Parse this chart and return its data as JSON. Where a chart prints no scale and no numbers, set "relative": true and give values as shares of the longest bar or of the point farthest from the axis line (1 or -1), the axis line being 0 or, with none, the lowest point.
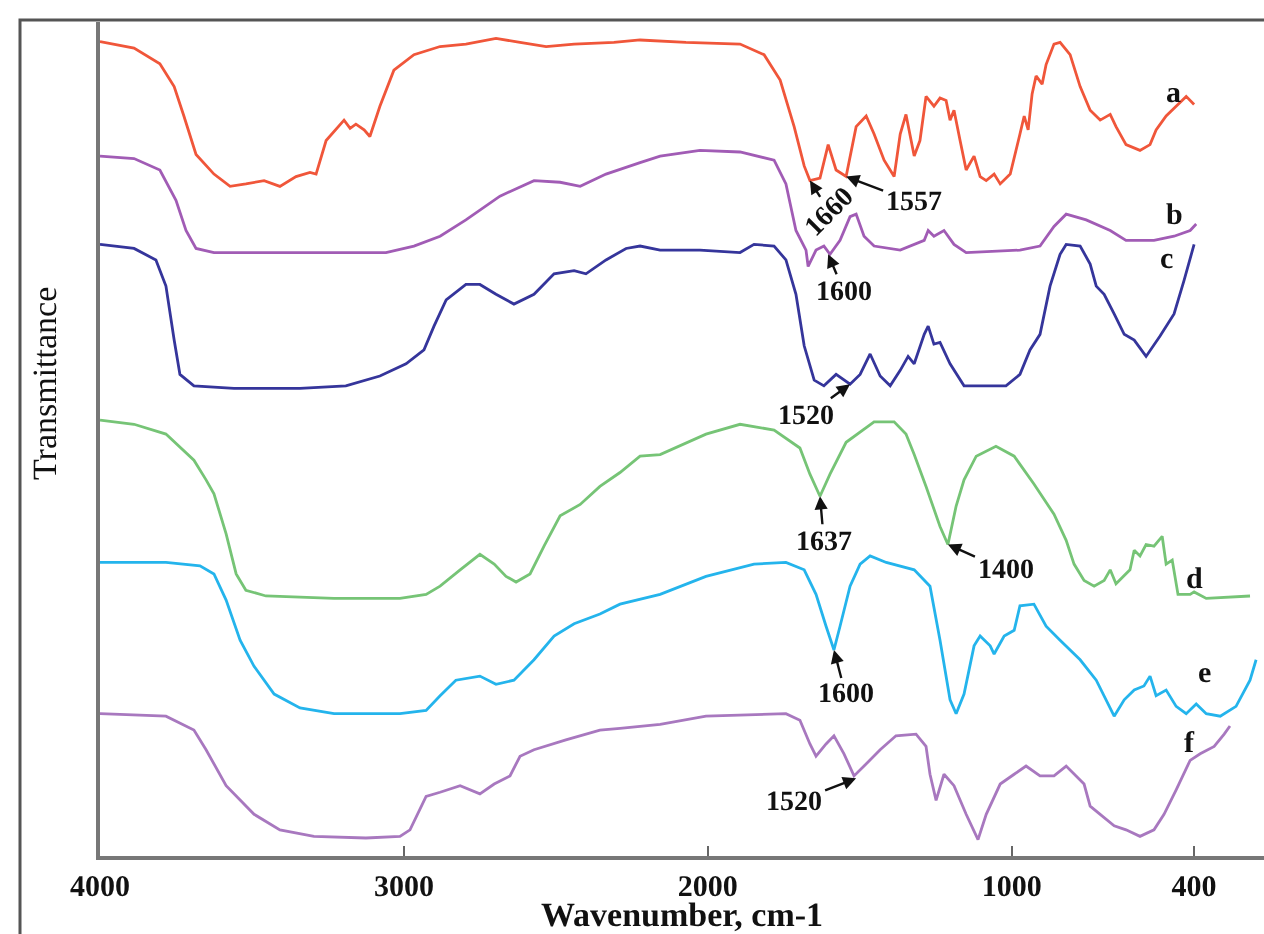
{
  "chart_data": {
    "type": "line",
    "relative": true,
    "xlabel": "Wavenumber, cm-1",
    "ylabel": "Transmittance",
    "xlim": [
      4000,
      170
    ],
    "xticks": [
      4000,
      3000,
      2000,
      1000,
      400
    ],
    "tick_labels": "x",
    "series": [
      {
        "name": "a",
        "color": "#f0563a",
        "x": [
          4000,
          3888,
          3803,
          3756,
          3724,
          3684,
          3625,
          3572,
          3520,
          3460,
          3408,
          3355,
          3309,
          3289,
          3256,
          3197,
          3177,
          3158,
          3131,
          3112,
          3079,
          3033,
          2967,
          2881,
          2796,
          2697,
          2618,
          2532,
          2440,
          2309,
          2223,
          2072,
          1894,
          1815,
          1762,
          1716,
          1683,
          1664,
          1631,
          1604,
          1578,
          1545,
          1512,
          1479,
          1453,
          1420,
          1387,
          1367,
          1348,
          1321,
          1302,
          1282,
          1256,
          1236,
          1216,
          1203,
          1190,
          1170,
          1150,
          1124,
          1104,
          1084,
          1058,
          1038,
          1005,
          973,
          959,
          946,
          933,
          920,
          900,
          887,
          861,
          841,
          808,
          775,
          742,
          709,
          676,
          657,
          624,
          578,
          545,
          525,
          492,
          459,
          426,
          400
        ],
        "values": [
          0.996,
          0.988,
          0.969,
          0.941,
          0.905,
          0.858,
          0.834,
          0.819,
          0.822,
          0.826,
          0.819,
          0.831,
          0.836,
          0.834,
          0.875,
          0.9,
          0.89,
          0.895,
          0.888,
          0.88,
          0.917,
          0.961,
          0.98,
          0.99,
          0.993,
          1.0,
          0.995,
          0.99,
          0.993,
          0.995,
          0.998,
          0.995,
          0.993,
          0.98,
          0.949,
          0.892,
          0.844,
          0.826,
          0.829,
          0.87,
          0.839,
          0.831,
          0.892,
          0.905,
          0.883,
          0.851,
          0.831,
          0.883,
          0.907,
          0.856,
          0.875,
          0.929,
          0.917,
          0.927,
          0.924,
          0.9,
          0.912,
          0.875,
          0.839,
          0.856,
          0.831,
          0.826,
          0.834,
          0.822,
          0.834,
          0.883,
          0.905,
          0.888,
          0.932,
          0.954,
          0.944,
          0.968,
          0.993,
          0.995,
          0.98,
          0.941,
          0.912,
          0.9,
          0.907,
          0.892,
          0.87,
          0.863,
          0.87,
          0.888,
          0.905,
          0.917,
          0.929,
          0.919
        ]
      },
      {
        "name": "b",
        "color": "#a15cb5",
        "x": [
          4000,
          3888,
          3803,
          3750,
          3717,
          3684,
          3625,
          3454,
          3230,
          3059,
          2967,
          2881,
          2796,
          2684,
          2572,
          2486,
          2420,
          2335,
          2223,
          2157,
          2026,
          1894,
          1782,
          1743,
          1710,
          1677,
          1670,
          1644,
          1618,
          1598,
          1565,
          1532,
          1512,
          1486,
          1453,
          1367,
          1288,
          1275,
          1256,
          1223,
          1190,
          1150,
          973,
          907,
          861,
          821,
          755,
          676,
          624,
          532,
          466,
          413,
          393
        ],
        "values": [
          0.856,
          0.853,
          0.839,
          0.802,
          0.765,
          0.743,
          0.738,
          0.738,
          0.738,
          0.738,
          0.746,
          0.758,
          0.778,
          0.807,
          0.826,
          0.824,
          0.819,
          0.834,
          0.848,
          0.856,
          0.863,
          0.861,
          0.851,
          0.822,
          0.765,
          0.741,
          0.721,
          0.741,
          0.746,
          0.736,
          0.753,
          0.782,
          0.785,
          0.758,
          0.746,
          0.741,
          0.753,
          0.765,
          0.758,
          0.765,
          0.748,
          0.738,
          0.741,
          0.746,
          0.77,
          0.785,
          0.778,
          0.765,
          0.753,
          0.753,
          0.758,
          0.765,
          0.773
        ]
      },
      {
        "name": "c",
        "color": "#35359b",
        "x": [
          4000,
          3888,
          3816,
          3783,
          3756,
          3737,
          3691,
          3559,
          3342,
          3191,
          3079,
          2993,
          2934,
          2901,
          2861,
          2796,
          2750,
          2697,
          2638,
          2572,
          2506,
          2440,
          2401,
          2335,
          2269,
          2223,
          2157,
          2026,
          1894,
          1848,
          1782,
          1743,
          1710,
          1683,
          1650,
          1618,
          1578,
          1532,
          1499,
          1466,
          1433,
          1400,
          1367,
          1341,
          1321,
          1288,
          1275,
          1256,
          1236,
          1203,
          1157,
          1019,
          973,
          940,
          907,
          874,
          841,
          821,
          775,
          742,
          722,
          696,
          663,
          630,
          597,
          558,
          512,
          466,
          433,
          400
        ],
        "values": [
          0.748,
          0.743,
          0.729,
          0.697,
          0.631,
          0.589,
          0.575,
          0.572,
          0.572,
          0.575,
          0.587,
          0.602,
          0.619,
          0.648,
          0.68,
          0.699,
          0.699,
          0.687,
          0.675,
          0.687,
          0.712,
          0.716,
          0.712,
          0.729,
          0.743,
          0.746,
          0.741,
          0.741,
          0.738,
          0.748,
          0.746,
          0.729,
          0.687,
          0.624,
          0.582,
          0.575,
          0.589,
          0.577,
          0.589,
          0.614,
          0.587,
          0.575,
          0.594,
          0.611,
          0.602,
          0.638,
          0.648,
          0.626,
          0.628,
          0.602,
          0.575,
          0.575,
          0.589,
          0.619,
          0.638,
          0.697,
          0.736,
          0.748,
          0.746,
          0.724,
          0.697,
          0.687,
          0.663,
          0.638,
          0.631,
          0.611,
          0.636,
          0.663,
          0.704,
          0.748
        ]
      },
      {
        "name": "d",
        "color": "#76c476",
        "x": [
          4000,
          3888,
          3783,
          3691,
          3651,
          3625,
          3585,
          3552,
          3520,
          3454,
          3230,
          3013,
          2927,
          2881,
          2815,
          2750,
          2703,
          2664,
          2631,
          2585,
          2539,
          2486,
          2420,
          2355,
          2289,
          2223,
          2157,
          2006,
          1894,
          1782,
          1697,
          1664,
          1631,
          1598,
          1545,
          1453,
          1387,
          1348,
          1321,
          1282,
          1236,
          1210,
          1183,
          1157,
          1117,
          1052,
          992,
          927,
          861,
          821,
          795,
          762,
          729,
          696,
          676,
          657,
          611,
          597,
          578,
          558,
          532,
          505,
          492,
          472,
          453,
          413,
          400,
          360,
          216
        ],
        "values": [
          0.533,
          0.528,
          0.516,
          0.484,
          0.46,
          0.443,
          0.394,
          0.345,
          0.325,
          0.318,
          0.315,
          0.315,
          0.32,
          0.33,
          0.35,
          0.369,
          0.357,
          0.342,
          0.335,
          0.345,
          0.379,
          0.416,
          0.43,
          0.452,
          0.469,
          0.489,
          0.491,
          0.516,
          0.528,
          0.521,
          0.499,
          0.467,
          0.44,
          0.467,
          0.506,
          0.531,
          0.531,
          0.516,
          0.491,
          0.452,
          0.403,
          0.381,
          0.428,
          0.46,
          0.489,
          0.501,
          0.489,
          0.455,
          0.418,
          0.386,
          0.357,
          0.337,
          0.33,
          0.337,
          0.35,
          0.333,
          0.35,
          0.374,
          0.367,
          0.381,
          0.379,
          0.391,
          0.357,
          0.362,
          0.32,
          0.32,
          0.323,
          0.315,
          0.318
        ]
      },
      {
        "name": "e",
        "color": "#24b4ec",
        "x": [
          4000,
          3783,
          3671,
          3625,
          3585,
          3539,
          3493,
          3427,
          3342,
          3230,
          3013,
          2927,
          2881,
          2829,
          2750,
          2697,
          2638,
          2572,
          2506,
          2440,
          2355,
          2289,
          2157,
          2006,
          1848,
          1743,
          1683,
          1644,
          1611,
          1585,
          1565,
          1532,
          1499,
          1466,
          1413,
          1321,
          1269,
          1236,
          1203,
          1183,
          1157,
          1124,
          1104,
          1071,
          1058,
          1025,
          992,
          973,
          927,
          887,
          841,
          775,
          722,
          663,
          630,
          597,
          565,
          545,
          525,
          492,
          459,
          426,
          393,
          360,
          314,
          262,
          216,
          196
        ],
        "values": [
          0.359,
          0.359,
          0.355,
          0.345,
          0.313,
          0.264,
          0.232,
          0.198,
          0.181,
          0.174,
          0.174,
          0.178,
          0.196,
          0.215,
          0.22,
          0.21,
          0.215,
          0.24,
          0.269,
          0.284,
          0.296,
          0.308,
          0.32,
          0.342,
          0.357,
          0.359,
          0.35,
          0.32,
          0.281,
          0.252,
          0.281,
          0.33,
          0.357,
          0.367,
          0.359,
          0.35,
          0.33,
          0.264,
          0.191,
          0.174,
          0.198,
          0.257,
          0.269,
          0.257,
          0.247,
          0.269,
          0.276,
          0.306,
          0.308,
          0.281,
          0.264,
          0.24,
          0.215,
          0.171,
          0.191,
          0.203,
          0.208,
          0.22,
          0.196,
          0.203,
          0.183,
          0.174,
          0.186,
          0.174,
          0.171,
          0.183,
          0.215,
          0.24
        ]
      },
      {
        "name": "f",
        "color": "#a878bf",
        "x": [
          4000,
          3783,
          3691,
          3651,
          3585,
          3493,
          3408,
          3296,
          3125,
          3013,
          2980,
          2927,
          2881,
          2815,
          2750,
          2703,
          2651,
          2618,
          2572,
          2467,
          2355,
          2289,
          2157,
          2006,
          1743,
          1697,
          1664,
          1644,
          1611,
          1585,
          1552,
          1519,
          1486,
          1433,
          1381,
          1315,
          1282,
          1269,
          1249,
          1223,
          1190,
          1150,
          1111,
          1084,
          1038,
          992,
          953,
          907,
          861,
          821,
          762,
          742,
          709,
          663,
          624,
          578,
          532,
          499,
          459,
          413,
          380,
          334,
          301,
          282
        ],
        "values": [
          0.174,
          0.171,
          0.154,
          0.13,
          0.086,
          0.051,
          0.032,
          0.024,
          0.022,
          0.024,
          0.032,
          0.073,
          0.078,
          0.086,
          0.076,
          0.088,
          0.098,
          0.122,
          0.13,
          0.142,
          0.154,
          0.156,
          0.161,
          0.171,
          0.174,
          0.166,
          0.137,
          0.122,
          0.137,
          0.147,
          0.125,
          0.098,
          0.11,
          0.13,
          0.147,
          0.149,
          0.134,
          0.1,
          0.068,
          0.1,
          0.086,
          0.051,
          0.02,
          0.051,
          0.088,
          0.1,
          0.11,
          0.098,
          0.098,
          0.11,
          0.088,
          0.061,
          0.051,
          0.037,
          0.032,
          0.024,
          0.032,
          0.051,
          0.081,
          0.117,
          0.125,
          0.134,
          0.149,
          0.159
        ]
      }
    ],
    "annotations": [
      {
        "text": "1660",
        "x": 1664,
        "y": 0.826
      },
      {
        "text": "1557",
        "x": 1545,
        "y": 0.831
      },
      {
        "text": "1600",
        "x": 1604,
        "y": 0.736
      },
      {
        "text": "1520",
        "x": 1532,
        "y": 0.577
      },
      {
        "text": "1637",
        "x": 1631,
        "y": 0.44
      },
      {
        "text": "1400",
        "x": 1210,
        "y": 0.381
      },
      {
        "text": "1600",
        "x": 1585,
        "y": 0.252
      },
      {
        "text": "1520",
        "x": 1512,
        "y": 0.095
      }
    ]
  }
}
